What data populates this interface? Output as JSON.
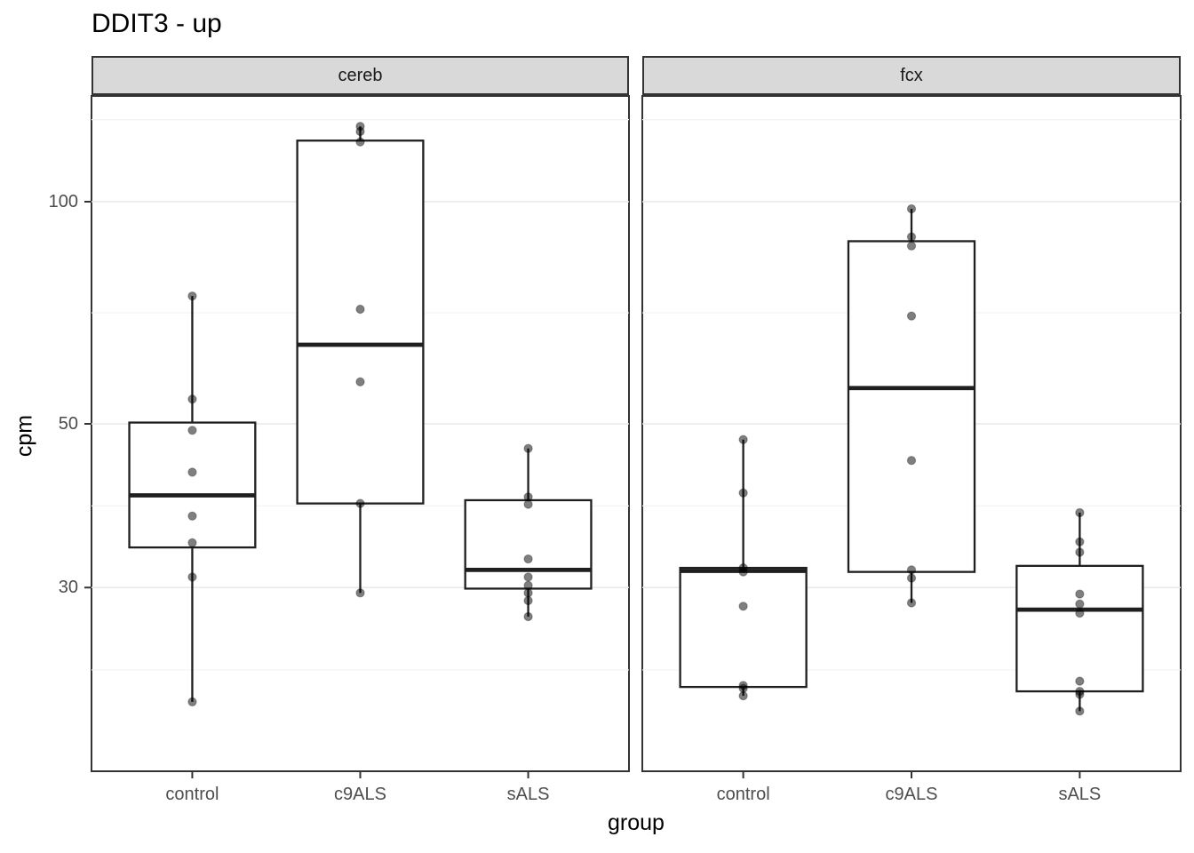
{
  "chart_data": {
    "type": "boxplot",
    "title": "DDIT3 - up",
    "xlabel": "group",
    "ylabel": "cpm",
    "y_scale": "log10",
    "y_ticks": [
      {
        "value": 100,
        "label": "100"
      },
      {
        "value": 50,
        "label": "50"
      },
      {
        "value": 30,
        "label": "30"
      }
    ],
    "y_minor_gridlines": [
      129.2,
      70.7,
      38.7,
      23.2
    ],
    "ylim_approx": [
      19,
      139
    ],
    "grid": "on",
    "legend": "none",
    "categories": [
      "control",
      "c9ALS",
      "sALS"
    ],
    "facets": [
      {
        "label": "cereb",
        "groups": [
          {
            "category": "control",
            "box": {
              "q1": 34,
              "median": 40,
              "q3": 50.2,
              "whisker_low": 21,
              "whisker_high": 74.5
            },
            "points": [
              74.5,
              54,
              49,
              43,
              37.5,
              34.5,
              31,
              21
            ]
          },
          {
            "category": "c9ALS",
            "box": {
              "q1": 39,
              "median": 64,
              "q3": 121,
              "whisker_low": 29.5,
              "whisker_high": 126.5
            },
            "points": [
              126.5,
              124.5,
              120.5,
              71.5,
              57,
              39,
              29.5
            ]
          },
          {
            "category": "sALS",
            "box": {
              "q1": 29.9,
              "median": 31.7,
              "q3": 39.4,
              "whisker_low": 27.4,
              "whisker_high": 46.3
            },
            "points": [
              46.3,
              39.8,
              38.9,
              32.8,
              31,
              30.2,
              29.5,
              28.8,
              27.4
            ]
          }
        ]
      },
      {
        "label": "fcx",
        "groups": [
          {
            "category": "control",
            "box": {
              "q1": 22,
              "median": 31.6,
              "q3": 31.9,
              "whisker_low": 21.4,
              "whisker_high": 47.6
            },
            "points": [
              47.6,
              40.3,
              31.9,
              31.5,
              28.3,
              22.1,
              21.9,
              21.4
            ]
          },
          {
            "category": "c9ALS",
            "box": {
              "q1": 31.5,
              "median": 55.9,
              "q3": 88.4,
              "whisker_low": 28.6,
              "whisker_high": 97.8
            },
            "points": [
              97.8,
              89.6,
              87.1,
              70,
              44.6,
              31.7,
              30.9,
              28.6
            ]
          },
          {
            "category": "sALS",
            "box": {
              "q1": 21.7,
              "median": 28,
              "q3": 32.1,
              "whisker_low": 20.4,
              "whisker_high": 37.9
            },
            "points": [
              37.9,
              34.6,
              33.5,
              29.4,
              28.5,
              27.7,
              22.4,
              21.7,
              21.5,
              20.4
            ]
          }
        ]
      }
    ]
  }
}
